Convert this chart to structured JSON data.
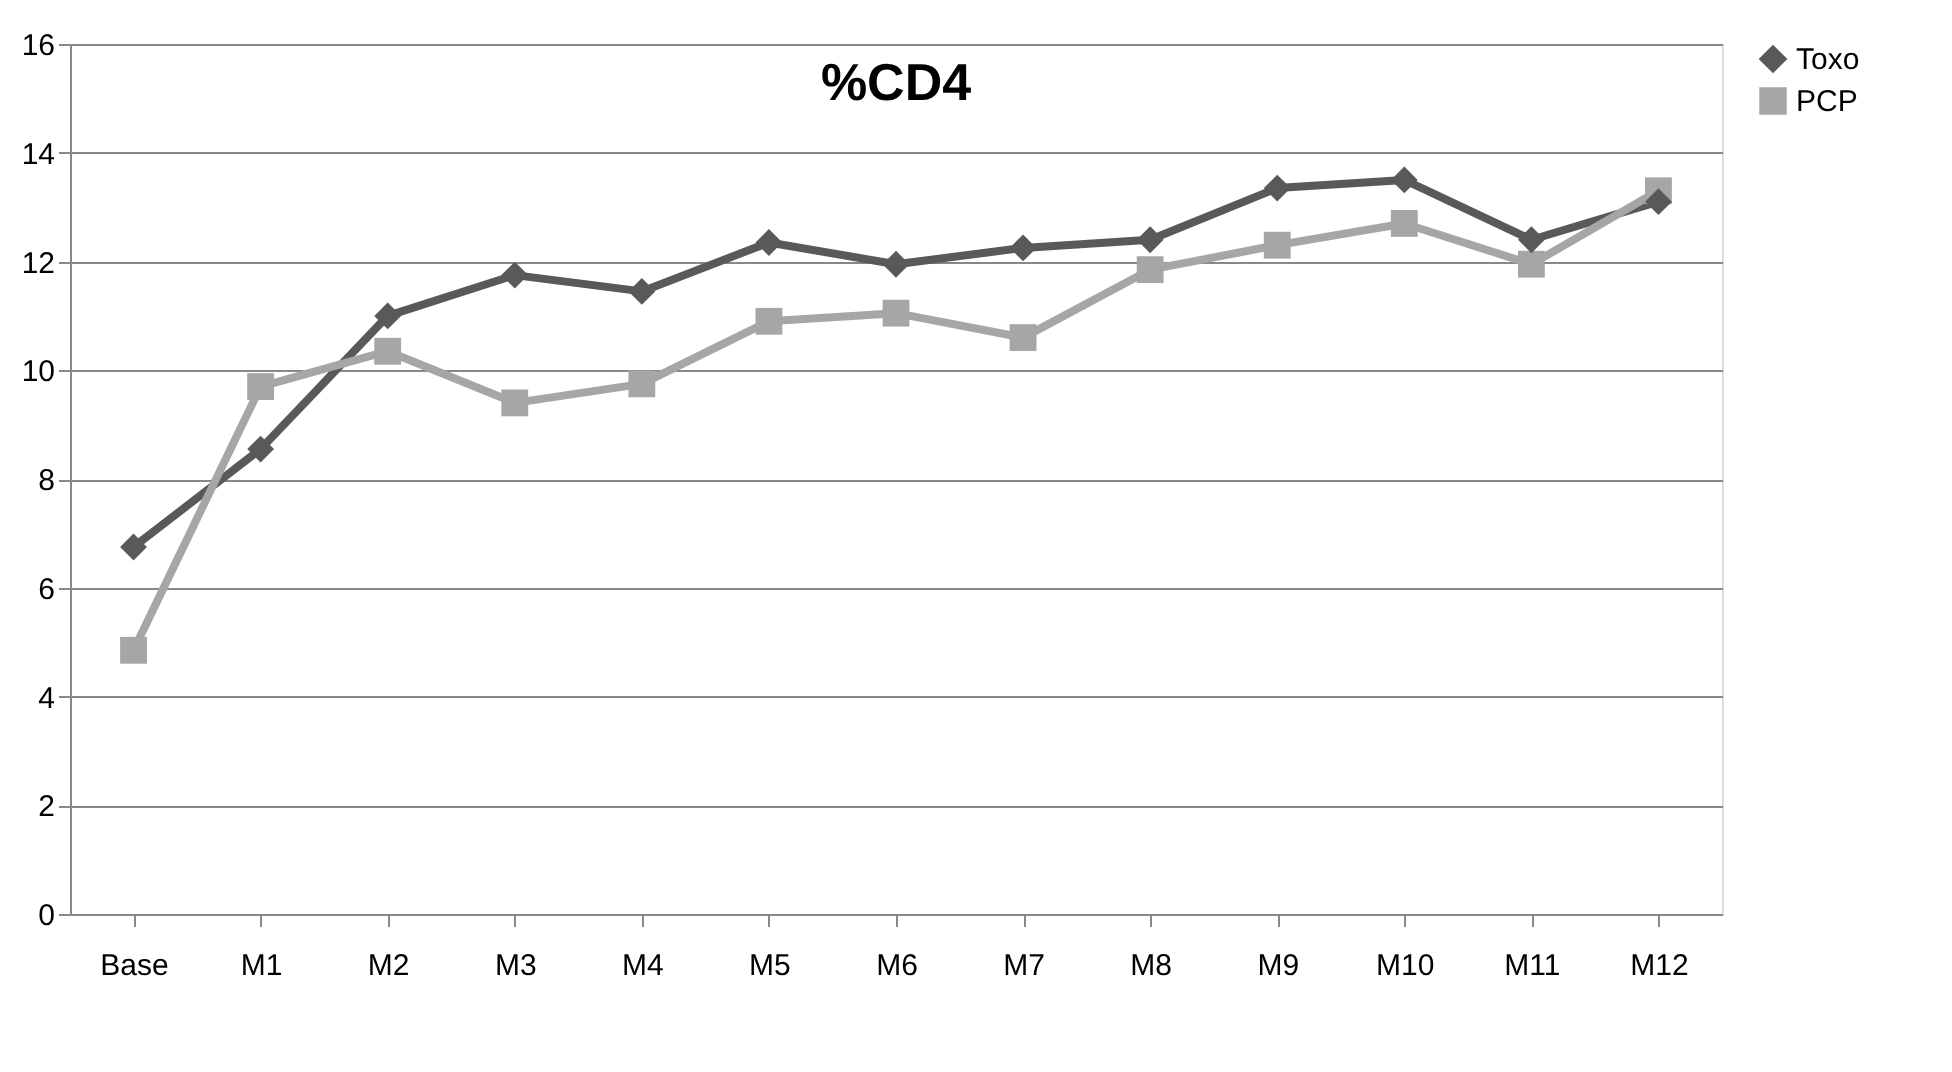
{
  "chart_data": {
    "type": "line",
    "title": "%CD4",
    "categories": [
      "Base",
      "M1",
      "M2",
      "M3",
      "M4",
      "M5",
      "M6",
      "M7",
      "M8",
      "M9",
      "M10",
      "M11",
      "M12"
    ],
    "series": [
      {
        "name": "Toxo",
        "color": "#595959",
        "marker": "diamond",
        "values": [
          6.75,
          8.55,
          11.0,
          11.75,
          11.45,
          12.35,
          11.95,
          12.25,
          12.4,
          13.35,
          13.5,
          12.4,
          13.1
        ]
      },
      {
        "name": "PCP",
        "color": "#a6a6a6",
        "marker": "square",
        "values": [
          4.85,
          9.7,
          10.35,
          9.4,
          9.75,
          10.9,
          11.05,
          10.6,
          11.85,
          12.3,
          12.7,
          11.95,
          13.3
        ]
      }
    ],
    "ylim": [
      0,
      16
    ],
    "yticks": [
      0,
      2,
      4,
      6,
      8,
      10,
      12,
      14,
      16
    ],
    "grid": "y",
    "legend": "right",
    "line_style": "solid"
  }
}
